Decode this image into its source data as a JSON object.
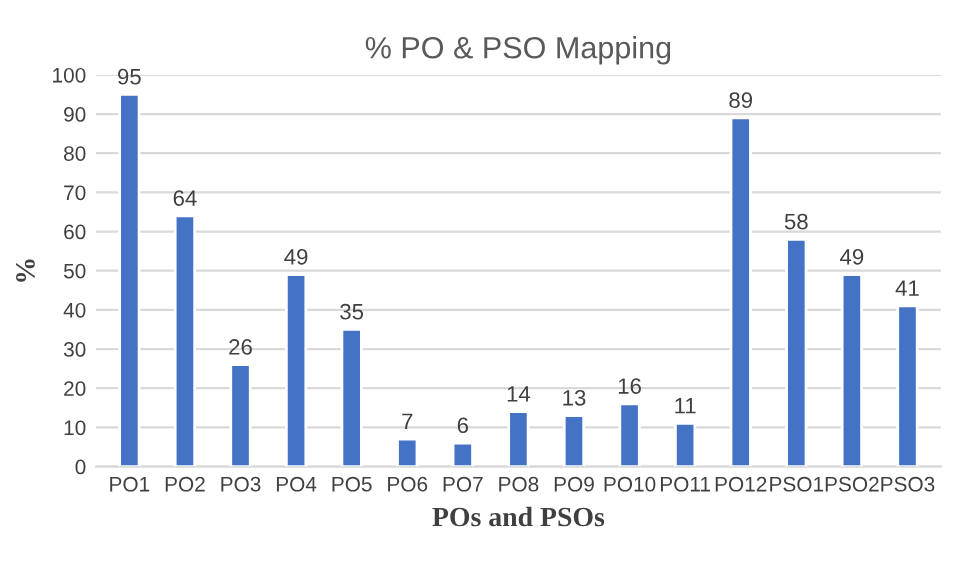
{
  "chart_data": {
    "type": "bar",
    "title": "% PO & PSO Mapping",
    "xlabel": "POs and PSOs",
    "ylabel": "%",
    "categories": [
      "PO1",
      "PO2",
      "PO3",
      "PO4",
      "PO5",
      "PO6",
      "PO7",
      "PO8",
      "PO9",
      "PO10",
      "PO11",
      "PO12",
      "PSO1",
      "PSO2",
      "PSO3"
    ],
    "values": [
      95,
      64,
      26,
      49,
      35,
      7,
      6,
      14,
      13,
      16,
      11,
      89,
      58,
      49,
      41
    ],
    "color": "#4472c4",
    "ylim": [
      0,
      100
    ],
    "yticks": [
      0,
      10,
      20,
      30,
      40,
      50,
      60,
      70,
      80,
      90,
      100
    ],
    "grid": "y",
    "data_labels": true
  }
}
